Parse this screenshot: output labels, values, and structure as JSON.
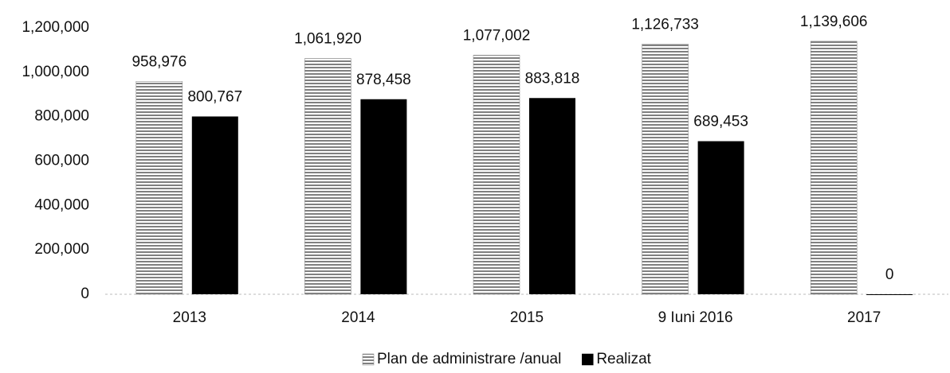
{
  "chart_data": {
    "type": "bar",
    "categories": [
      "2013",
      "2014",
      "2015",
      "9 Iuni 2016",
      "2017"
    ],
    "series": [
      {
        "name": "Plan de administrare /anual",
        "color": "#808080",
        "values": [
          958976,
          1061920,
          1077002,
          1126733,
          1139606
        ],
        "value_labels": [
          "958,976",
          "1,061,920",
          "1,077,002",
          "1,126,733",
          "1,139,606"
        ]
      },
      {
        "name": "Realizat",
        "color": "#000000",
        "values": [
          800767,
          878458,
          883818,
          689453,
          0
        ],
        "value_labels": [
          "800,767",
          "878,458",
          "883,818",
          "689,453",
          "0"
        ]
      }
    ],
    "ylim": [
      0,
      1200000
    ],
    "yticks": [
      0,
      {
        "value": 200000,
        "label": "200,000"
      },
      {
        "value": 400000,
        "label": "400,000"
      },
      {
        "value": 600000,
        "label": "600,000"
      },
      {
        "value": 800000,
        "label": "800,000"
      },
      {
        "value": 1000000,
        "label": "1,000,000"
      },
      {
        "value": 1200000,
        "label": "1,200,000"
      }
    ],
    "grid": false,
    "legend": "bottom"
  }
}
